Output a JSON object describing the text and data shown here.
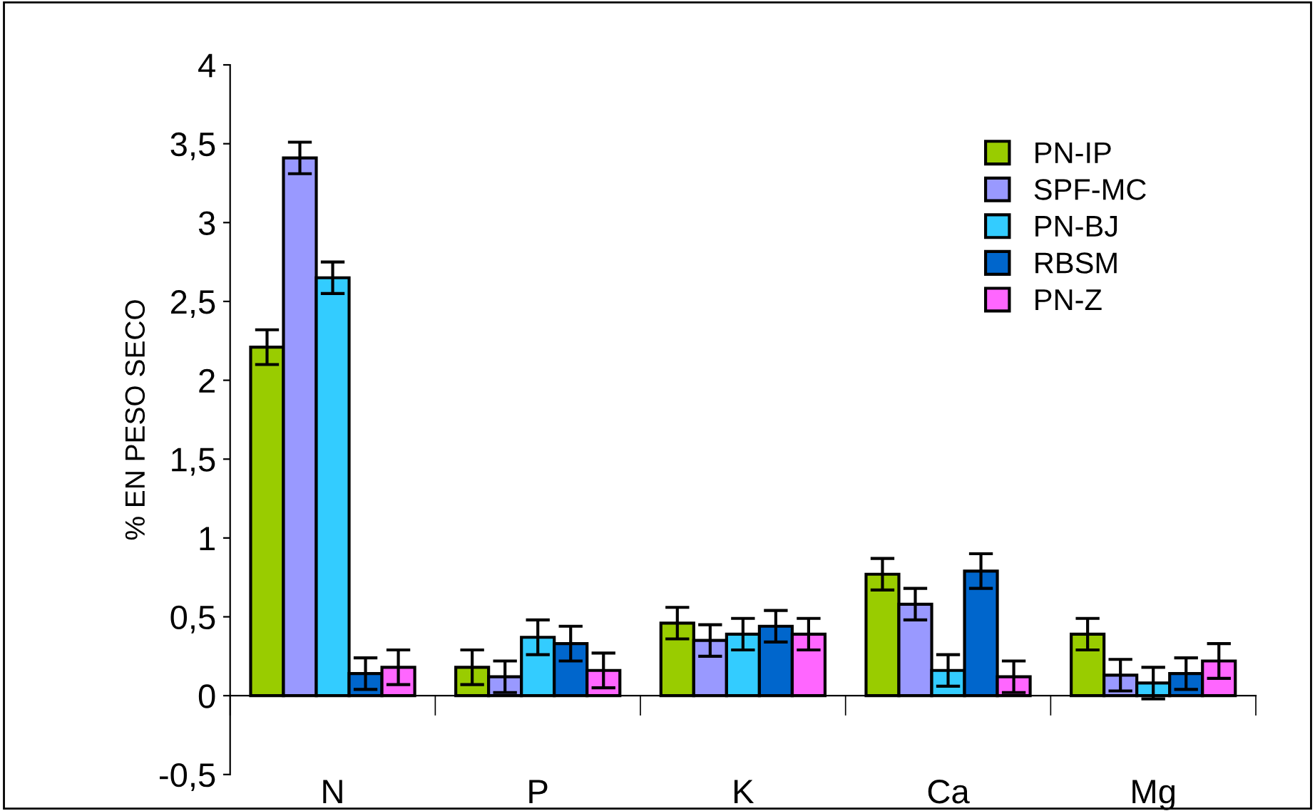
{
  "chart_data": {
    "type": "bar",
    "ylabel": "% EN PESO SECO",
    "categories": [
      "N",
      "P",
      "K",
      "Ca",
      "Mg"
    ],
    "series": [
      {
        "name": "PN-IP",
        "color": "#99cc00",
        "values": [
          2.21,
          0.18,
          0.46,
          0.77,
          0.39
        ],
        "errors": [
          0.11,
          0.11,
          0.1,
          0.1,
          0.1
        ]
      },
      {
        "name": "SPF-MC",
        "color": "#9999ff",
        "values": [
          3.41,
          0.12,
          0.35,
          0.58,
          0.13
        ],
        "errors": [
          0.1,
          0.1,
          0.1,
          0.1,
          0.1
        ]
      },
      {
        "name": "PN-BJ",
        "color": "#33ccff",
        "values": [
          2.65,
          0.37,
          0.39,
          0.16,
          0.08
        ],
        "errors": [
          0.1,
          0.11,
          0.1,
          0.1,
          0.1
        ]
      },
      {
        "name": "RBSM",
        "color": "#0066cc",
        "values": [
          0.14,
          0.33,
          0.44,
          0.79,
          0.14
        ],
        "errors": [
          0.1,
          0.11,
          0.1,
          0.11,
          0.1
        ]
      },
      {
        "name": "PN-Z",
        "color": "#ff66ff",
        "values": [
          0.18,
          0.16,
          0.39,
          0.12,
          0.22
        ],
        "errors": [
          0.11,
          0.11,
          0.1,
          0.1,
          0.11
        ]
      }
    ],
    "ylim": [
      -0.5,
      4
    ],
    "yticks": [
      {
        "value": -0.5,
        "label": "-0,5"
      },
      0,
      {
        "value": 0.5,
        "label": "0,5"
      },
      1,
      {
        "value": 1.5,
        "label": "1,5"
      },
      2,
      {
        "value": 2.5,
        "label": "2,5"
      },
      3,
      {
        "value": 3.5,
        "label": "3,5"
      },
      4
    ],
    "legend": "top right"
  }
}
